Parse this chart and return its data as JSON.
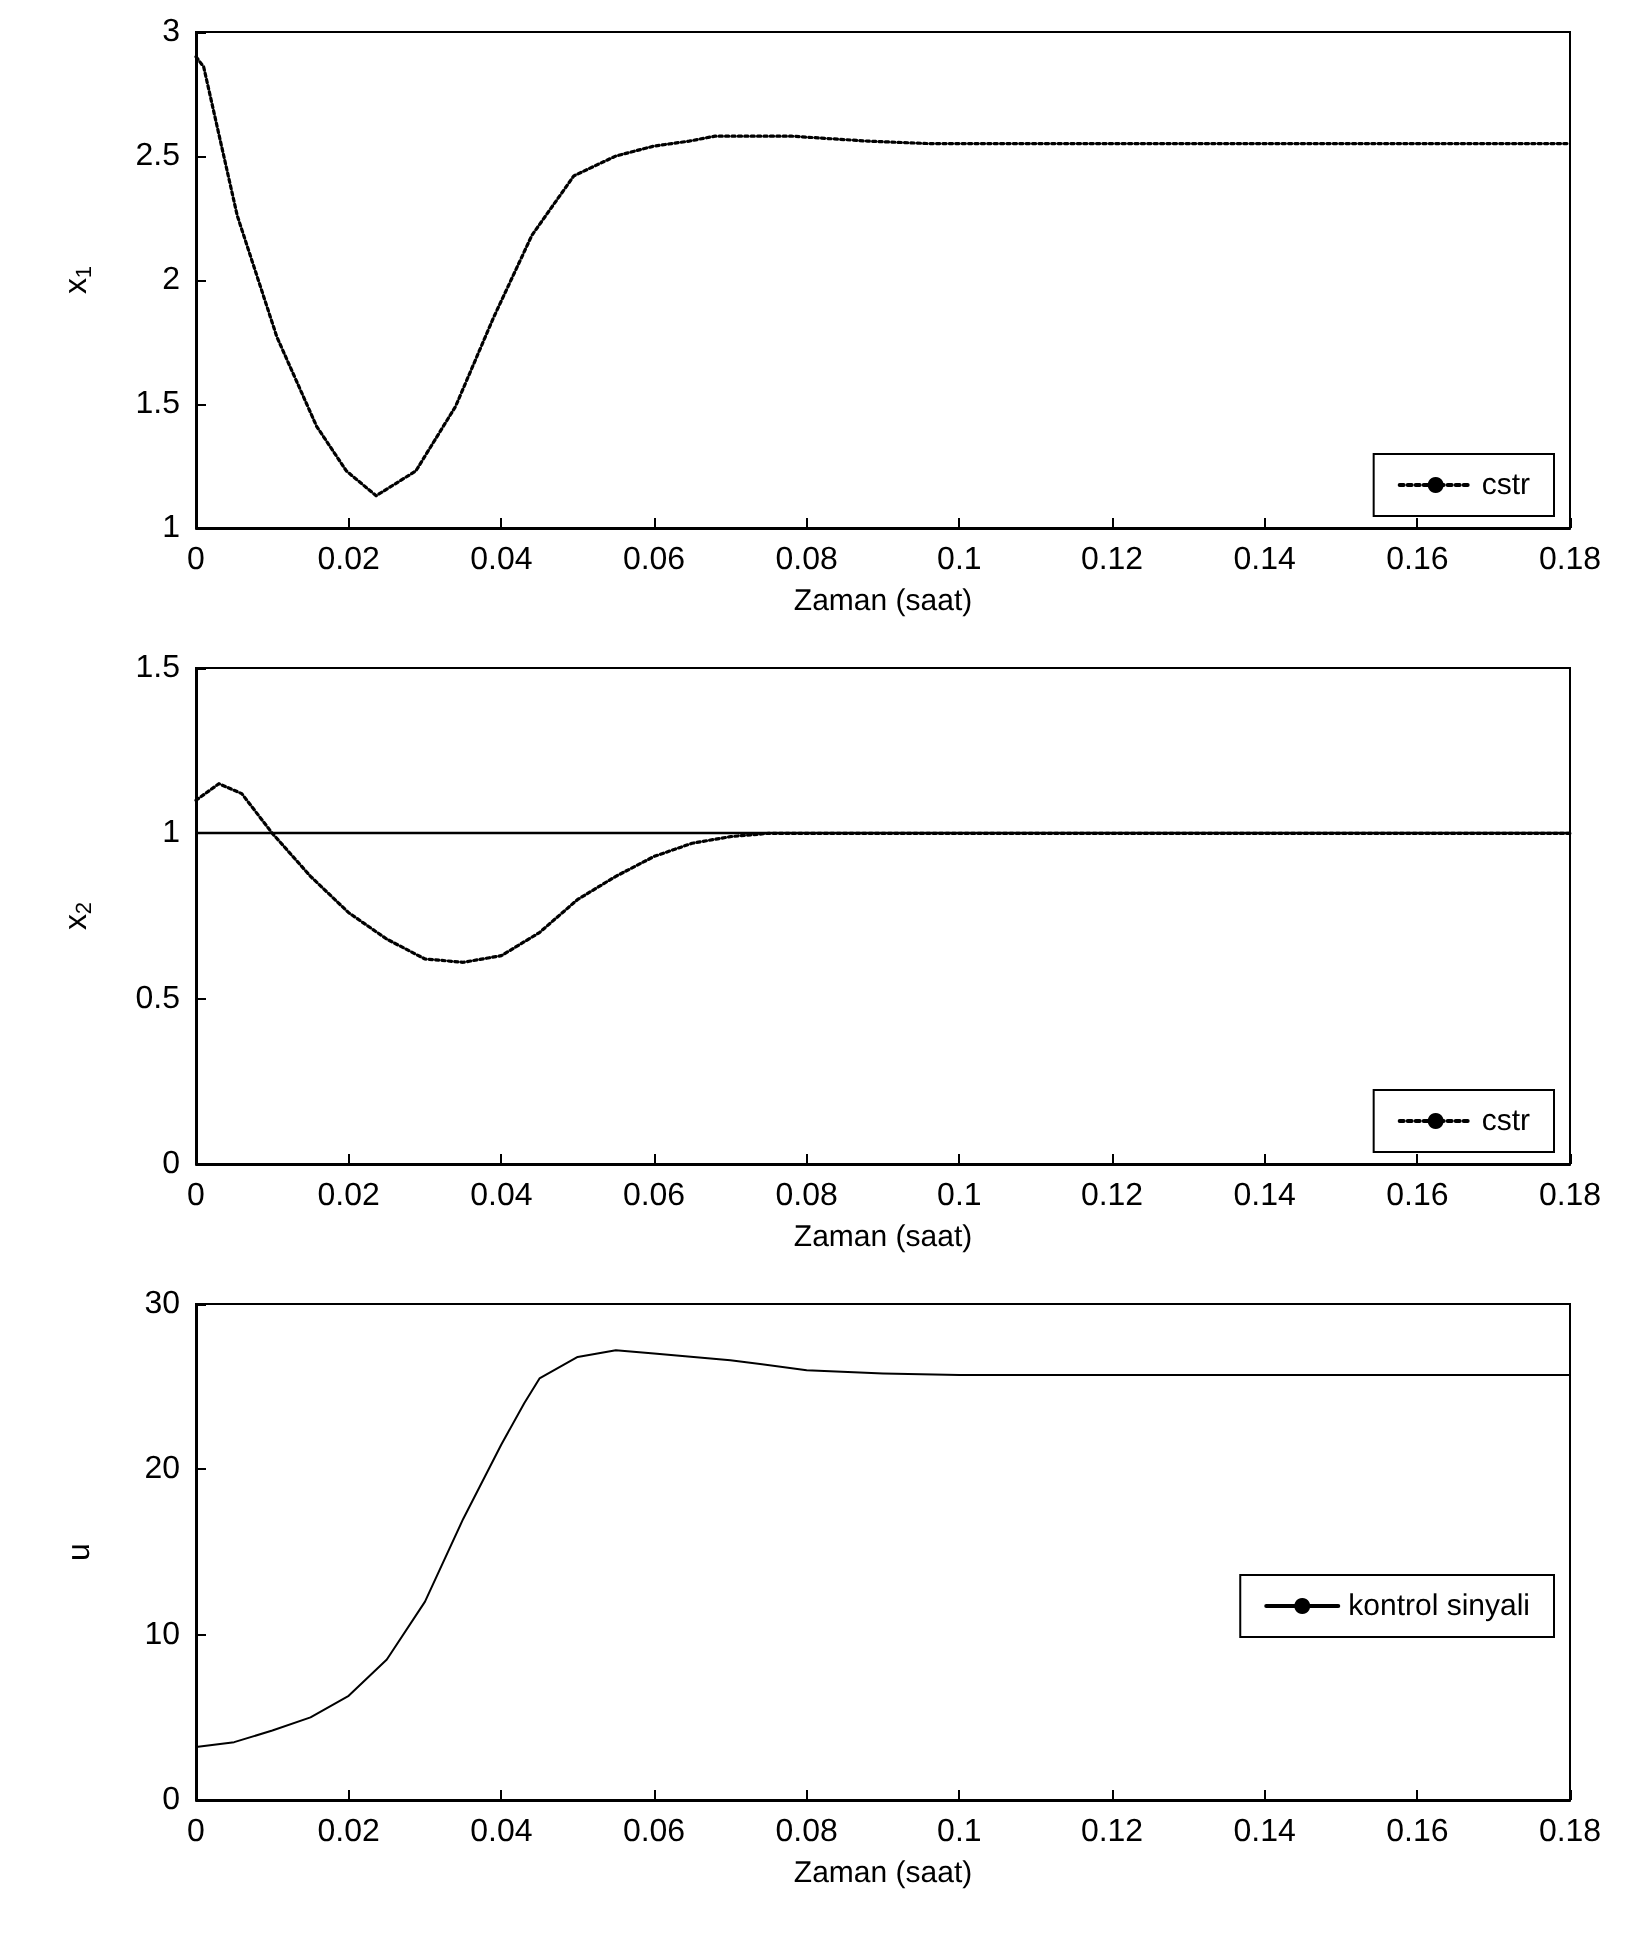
{
  "chart_data": [
    {
      "type": "line",
      "xlabel": "Zaman (saat)",
      "ylabel": "x$_{1}$",
      "xlim": [
        0,
        0.18
      ],
      "xticks": [
        0,
        0.02,
        0.04,
        0.06,
        0.08,
        0.1,
        0.12,
        0.14,
        0.16,
        0.18
      ],
      "ylim": [
        1,
        3
      ],
      "yticks": [
        1,
        1.5,
        2,
        2.5,
        3
      ],
      "grid": false,
      "legend": "bottom right",
      "line_style": "dotted",
      "marker": "none",
      "series": [
        {
          "name": "cstr",
          "color": "#000000",
          "x": [
            0,
            0.001,
            0.0054,
            0.0106,
            0.0158,
            0.0197,
            0.0236,
            0.0288,
            0.034,
            0.039,
            0.044,
            0.0495,
            0.055,
            0.06,
            0.0646,
            0.068,
            0.078,
            0.088,
            0.096,
            0.12,
            0.15,
            0.18
          ],
          "values": [
            2.9,
            2.86,
            2.26,
            1.77,
            1.41,
            1.23,
            1.13,
            1.23,
            1.49,
            1.85,
            2.18,
            2.42,
            2.5,
            2.54,
            2.56,
            2.58,
            2.58,
            2.56,
            2.55,
            2.55,
            2.55,
            2.55
          ]
        }
      ]
    },
    {
      "type": "line",
      "xlabel": "Zaman (saat)",
      "ylabel": "x$_{2}$",
      "xlim": [
        0,
        0.18
      ],
      "xticks": [
        0,
        0.02,
        0.04,
        0.06,
        0.08,
        0.1,
        0.12,
        0.14,
        0.16,
        0.18
      ],
      "ylim": [
        0,
        1.5
      ],
      "yticks": [
        0,
        0.5,
        1,
        1.5
      ],
      "grid": false,
      "legend": "bottom right",
      "line_style": "dotted",
      "marker": "none",
      "ref_lines": [
        {
          "axis": "y",
          "value": 1,
          "color": "#000000",
          "line_style": "solid"
        }
      ],
      "series": [
        {
          "name": "cstr",
          "color": "#000000",
          "x": [
            0,
            0.003,
            0.006,
            0.01,
            0.015,
            0.02,
            0.025,
            0.03,
            0.035,
            0.04,
            0.045,
            0.05,
            0.055,
            0.06,
            0.065,
            0.07,
            0.075,
            0.1,
            0.14,
            0.18
          ],
          "values": [
            1.1,
            1.15,
            1.12,
            1.0,
            0.87,
            0.76,
            0.68,
            0.62,
            0.61,
            0.63,
            0.7,
            0.8,
            0.87,
            0.93,
            0.97,
            0.99,
            1.0,
            1.0,
            1.0,
            1.0
          ]
        }
      ]
    },
    {
      "type": "line",
      "xlabel": "Zaman (saat)",
      "ylabel": "u",
      "xlim": [
        0,
        0.18
      ],
      "xticks": [
        0,
        0.02,
        0.04,
        0.06,
        0.08,
        0.1,
        0.12,
        0.14,
        0.16,
        0.18
      ],
      "ylim": [
        0,
        30
      ],
      "yticks": [
        0,
        10,
        20,
        30
      ],
      "grid": false,
      "legend": "right",
      "line_style": "solid",
      "marker": "none",
      "series": [
        {
          "name": "kontrol sinyali",
          "color": "#000000",
          "x": [
            0,
            0.005,
            0.01,
            0.015,
            0.02,
            0.025,
            0.03,
            0.035,
            0.04,
            0.043,
            0.045,
            0.05,
            0.055,
            0.06,
            0.07,
            0.08,
            0.09,
            0.1,
            0.14,
            0.18
          ],
          "values": [
            3.2,
            3.5,
            4.2,
            5,
            6.3,
            8.5,
            12,
            17,
            21.5,
            24,
            25.5,
            26.8,
            27.2,
            27,
            26.6,
            26,
            25.8,
            25.7,
            25.7,
            25.7
          ]
        }
      ]
    }
  ]
}
